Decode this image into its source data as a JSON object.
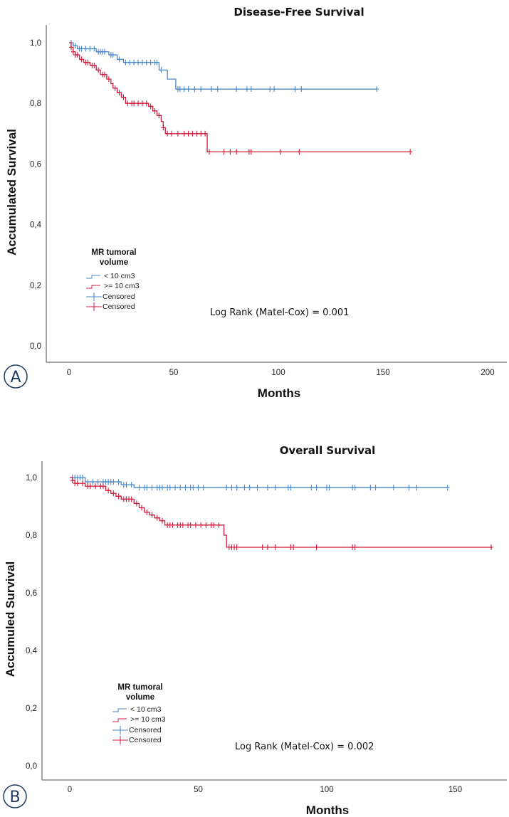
{
  "colors": {
    "low": "#4a86c8",
    "high": "#d11a3c",
    "axis": "#777777",
    "panel": "#1e3a5f"
  },
  "chart_data": [
    {
      "type": "line",
      "subtype": "kaplan-meier",
      "panel": "A",
      "title": "Disease-Free Survival",
      "xlabel": "Months",
      "ylabel": "Accumulated Survival",
      "xlim": [
        -10,
        210
      ],
      "ylim": [
        -0.05,
        1.03
      ],
      "xticks": [
        0,
        50,
        100,
        150,
        200
      ],
      "xtick_labels": [
        "0",
        "50",
        "100",
        "150",
        "200"
      ],
      "yticks": [
        0,
        0.2,
        0.4,
        0.6,
        0.8,
        1.0
      ],
      "ytick_labels": [
        "0,0",
        "0,2",
        "0,4",
        "0,6",
        "0,8",
        "1,0"
      ],
      "legend": {
        "title": "MR tumoral volume",
        "placement": "center-left",
        "entries": [
          "< 10 cm3",
          ">= 10 cm3",
          "Censored",
          "Censored"
        ]
      },
      "annotation": "Log Rank (Matel-Cox) = 0.001",
      "series": [
        {
          "name": "< 10 cm3",
          "color_key": "low",
          "steps": [
            [
              0,
              1.0
            ],
            [
              2,
              0.99
            ],
            [
              4,
              0.98
            ],
            [
              13,
              0.97
            ],
            [
              19,
              0.96
            ],
            [
              23,
              0.945
            ],
            [
              26,
              0.935
            ],
            [
              43,
              0.91
            ],
            [
              47,
              0.88
            ],
            [
              51,
              0.847
            ],
            [
              147,
              0.847
            ]
          ],
          "censored": [
            1,
            3,
            5,
            6,
            8,
            10,
            12,
            14,
            15,
            16,
            17,
            20,
            21,
            24,
            27,
            29,
            31,
            33,
            35,
            37,
            39,
            41,
            42,
            44,
            52,
            53,
            55,
            57,
            60,
            63,
            68,
            71,
            80,
            85,
            87,
            96,
            98,
            108,
            111,
            147
          ]
        },
        {
          "name": ">= 10 cm3",
          "color_key": "high",
          "steps": [
            [
              0,
              1.0
            ],
            [
              1,
              0.985
            ],
            [
              2,
              0.97
            ],
            [
              3,
              0.96
            ],
            [
              5,
              0.945
            ],
            [
              7,
              0.935
            ],
            [
              10,
              0.925
            ],
            [
              13,
              0.91
            ],
            [
              15,
              0.895
            ],
            [
              18,
              0.88
            ],
            [
              20,
              0.865
            ],
            [
              21,
              0.85
            ],
            [
              23,
              0.835
            ],
            [
              25,
              0.82
            ],
            [
              27,
              0.8
            ],
            [
              38,
              0.79
            ],
            [
              40,
              0.775
            ],
            [
              42,
              0.76
            ],
            [
              44,
              0.74
            ],
            [
              45,
              0.72
            ],
            [
              46,
              0.7
            ],
            [
              66,
              0.64
            ],
            [
              163,
              0.64
            ]
          ],
          "censored": [
            1,
            2,
            3,
            4,
            6,
            8,
            9,
            11,
            12,
            14,
            16,
            17,
            19,
            22,
            24,
            26,
            28,
            30,
            31,
            33,
            35,
            37,
            39,
            41,
            43,
            45,
            47,
            49,
            52,
            55,
            57,
            59,
            61,
            63,
            65,
            67,
            74,
            77,
            80,
            86,
            87,
            101,
            110,
            163
          ]
        }
      ]
    },
    {
      "type": "line",
      "subtype": "kaplan-meier",
      "panel": "B",
      "title": "Overall Survival",
      "xlabel": "Months",
      "ylabel": "Accumuled Survival",
      "xlim": [
        -10,
        167
      ],
      "ylim": [
        -0.05,
        1.05
      ],
      "xticks": [
        0,
        50,
        100,
        150
      ],
      "xtick_labels": [
        "0",
        "50",
        "100",
        "150"
      ],
      "yticks": [
        0,
        0.2,
        0.4,
        0.6,
        0.8,
        1.0
      ],
      "ytick_labels": [
        "0,0",
        "0,2",
        "0,4",
        "0,6",
        "0,8",
        "1,0"
      ],
      "legend": {
        "title": "MR tumoral volume",
        "placement": "center-left",
        "entries": [
          "< 10 cm3",
          ">= 10 cm3",
          "Censored",
          "Censored"
        ]
      },
      "annotation": "Log Rank (Matel-Cox) = 0.002",
      "series": [
        {
          "name": "< 10 cm3",
          "color_key": "low",
          "steps": [
            [
              0,
              1.0
            ],
            [
              6,
              0.985
            ],
            [
              20,
              0.975
            ],
            [
              25,
              0.965
            ],
            [
              147,
              0.965
            ]
          ],
          "censored": [
            1,
            2,
            3,
            4,
            5,
            7,
            9,
            11,
            13,
            14,
            15,
            16,
            17,
            19,
            21,
            22,
            24,
            27,
            29,
            30,
            32,
            34,
            35,
            36,
            38,
            39,
            41,
            43,
            45,
            47,
            48,
            50,
            52,
            61,
            63,
            65,
            68,
            70,
            73,
            77,
            80,
            85,
            86,
            94,
            96,
            100,
            101,
            110,
            111,
            117,
            119,
            126,
            132,
            135,
            147
          ]
        },
        {
          "name": ">= 10 cm3",
          "color_key": "high",
          "steps": [
            [
              0,
              1.0
            ],
            [
              1,
              0.99
            ],
            [
              2,
              0.98
            ],
            [
              6,
              0.97
            ],
            [
              14,
              0.955
            ],
            [
              16,
              0.945
            ],
            [
              18,
              0.935
            ],
            [
              20,
              0.925
            ],
            [
              25,
              0.91
            ],
            [
              27,
              0.895
            ],
            [
              29,
              0.88
            ],
            [
              31,
              0.87
            ],
            [
              33,
              0.86
            ],
            [
              35,
              0.85
            ],
            [
              37,
              0.835
            ],
            [
              60,
              0.8
            ],
            [
              61,
              0.758
            ],
            [
              164,
              0.758
            ]
          ],
          "censored": [
            1,
            2,
            3,
            5,
            7,
            8,
            10,
            12,
            13,
            15,
            17,
            19,
            21,
            22,
            23,
            24,
            26,
            28,
            30,
            32,
            34,
            36,
            38,
            39,
            40,
            42,
            43,
            44,
            46,
            47,
            49,
            51,
            53,
            55,
            56,
            58,
            62,
            63,
            64,
            65,
            75,
            77,
            80,
            86,
            87,
            96,
            110,
            111,
            164
          ]
        }
      ]
    }
  ]
}
